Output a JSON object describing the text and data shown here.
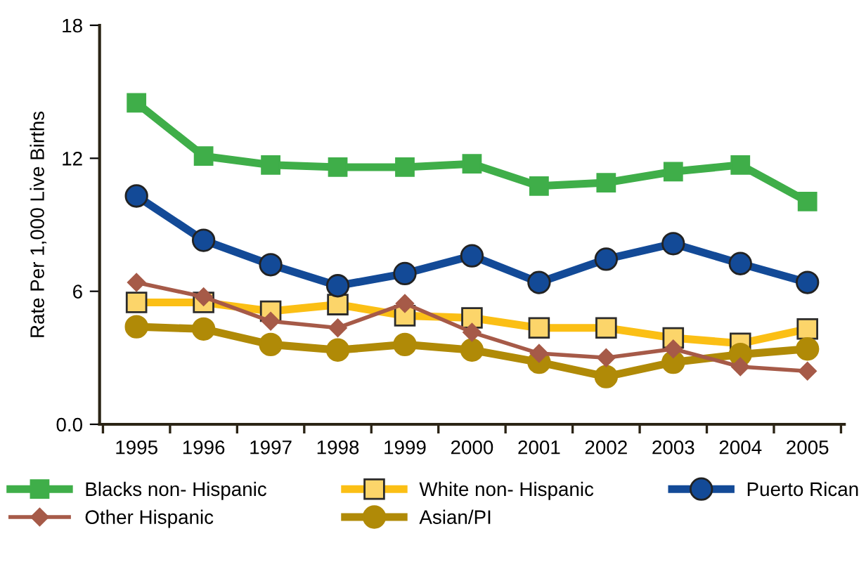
{
  "chart_data": {
    "type": "line",
    "ylabel": "Rate Per 1,000 Live Births",
    "categories": [
      "1995",
      "1996",
      "1997",
      "1998",
      "1999",
      "2000",
      "2001",
      "2002",
      "2003",
      "2004",
      "2005"
    ],
    "ylim": [
      0,
      18
    ],
    "yticks": [
      {
        "value": 0,
        "label": "0.0"
      },
      6,
      12,
      18
    ],
    "grid": false,
    "legend": "bottom",
    "series": [
      {
        "name": "Blacks non- Hispanic",
        "color": "#3fae49",
        "marker": "square",
        "values": [
          14.5,
          12.1,
          11.7,
          11.6,
          11.6,
          11.75,
          10.75,
          10.9,
          11.4,
          11.7,
          10.05
        ]
      },
      {
        "name": "White non- Hispanic",
        "color": "#fbbf15",
        "marker": "square",
        "values": [
          5.5,
          5.5,
          5.1,
          5.4,
          4.9,
          4.8,
          4.35,
          4.35,
          3.9,
          3.65,
          4.3
        ]
      },
      {
        "name": "Puerto Rican",
        "color": "#134a97",
        "marker": "circle",
        "values": [
          10.3,
          8.3,
          7.2,
          6.25,
          6.8,
          7.6,
          6.4,
          7.45,
          8.15,
          7.25,
          6.4
        ]
      },
      {
        "name": "Other Hispanic",
        "color": "#a65a48",
        "marker": "diamond",
        "values": [
          6.4,
          5.75,
          4.65,
          4.35,
          5.45,
          4.15,
          3.2,
          3.0,
          3.4,
          2.6,
          2.4
        ]
      },
      {
        "name": "Asian/PI",
        "color": "#b08a07",
        "marker": "circle",
        "values": [
          4.4,
          4.3,
          3.6,
          3.35,
          3.6,
          3.35,
          2.8,
          2.15,
          2.8,
          3.15,
          3.4
        ]
      }
    ]
  }
}
